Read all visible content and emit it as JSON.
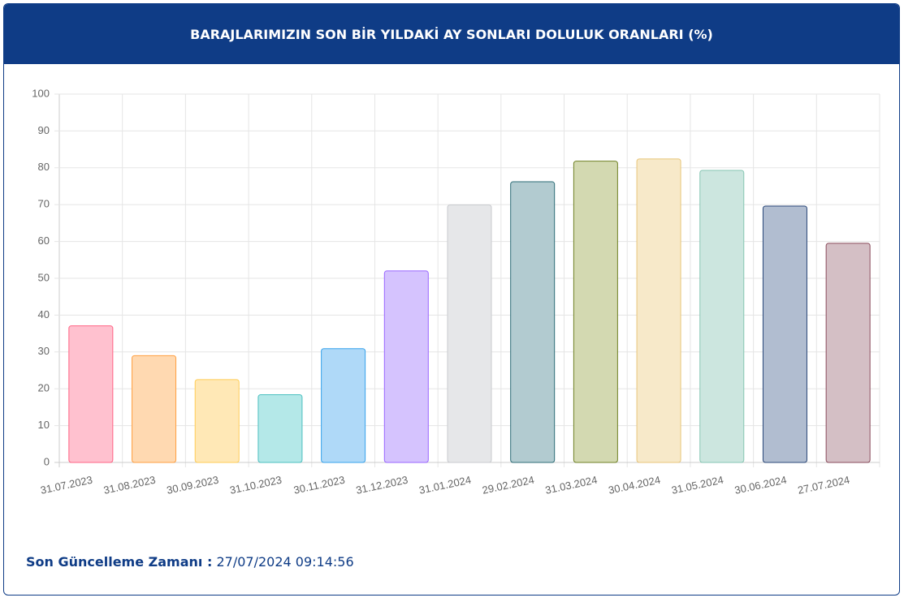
{
  "chart_data": {
    "type": "bar",
    "title": "BARAJLARIMIZIN SON BİR YILDAKİ AY SONLARI DOLULUK ORANLARI (%)",
    "categories": [
      "31.07.2023",
      "31.08.2023",
      "30.09.2023",
      "31.10.2023",
      "30.11.2023",
      "31.12.2023",
      "31.01.2024",
      "29.02.2024",
      "31.03.2024",
      "30.04.2024",
      "31.05.2024",
      "30.06.2024",
      "27.07.2024"
    ],
    "values": [
      37.1,
      29.0,
      22.5,
      18.4,
      30.9,
      52.0,
      69.9,
      76.2,
      81.8,
      82.4,
      79.3,
      69.6,
      59.5
    ],
    "colors": [
      "#ffc1cf",
      "#ffd9b1",
      "#ffe8b6",
      "#b4e8e8",
      "#afd9f8",
      "#d5c3fe",
      "#e6e7e9",
      "#b2cbd0",
      "#d3d9b1",
      "#f7e9c9",
      "#cce6df",
      "#b1bdd0",
      "#d4bfc5"
    ],
    "border_colors": [
      "#ff6384",
      "#ff9f40",
      "#ffcd56",
      "#4bc0c0",
      "#36a2eb",
      "#9966ff",
      "#c9cbcf",
      "#2d6d77",
      "#6f8124",
      "#e8c57a",
      "#86c6b3",
      "#2a4778",
      "#8a4b5b"
    ],
    "ylim": [
      0,
      100
    ],
    "yticks": [
      0,
      10,
      20,
      30,
      40,
      50,
      60,
      70,
      80,
      90,
      100
    ],
    "grid": true
  },
  "footer": {
    "label": "Son Güncelleme Zamanı :",
    "value": "27/07/2024 09:14:56"
  }
}
